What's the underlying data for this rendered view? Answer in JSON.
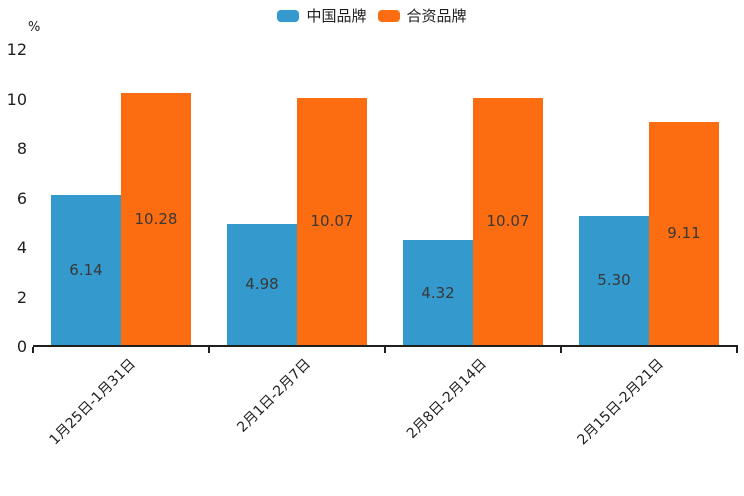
{
  "chart_data": {
    "type": "bar",
    "title": "",
    "unit_label": "%",
    "categories": [
      "1月25日-1月31日",
      "2月1日-2月7日",
      "2月8日-2月14日",
      "2月15日-2月21日"
    ],
    "series": [
      {
        "name": "中国品牌",
        "color": "#3499CC",
        "values": [
          6.14,
          4.98,
          4.32,
          5.3
        ],
        "value_labels": [
          "6.14",
          "4.98",
          "4.32",
          "5.30"
        ]
      },
      {
        "name": "合资品牌",
        "color": "#FB6D10",
        "values": [
          10.28,
          10.07,
          10.07,
          9.11
        ],
        "value_labels": [
          "10.28",
          "10.07",
          "10.07",
          "9.11"
        ]
      }
    ],
    "ylim": [
      0,
      12
    ],
    "yticks": [
      0,
      2,
      4,
      6,
      8,
      10,
      12
    ],
    "legend_position": "top-center",
    "grid": false,
    "bar_label_position": "inside-center",
    "xlabel": "",
    "ylabel": ""
  },
  "colors": {
    "axis": "#1F1F1F",
    "tick_text": "#1F1F1F",
    "bar_label_text": "#383838",
    "background": "#FFFFFF"
  }
}
